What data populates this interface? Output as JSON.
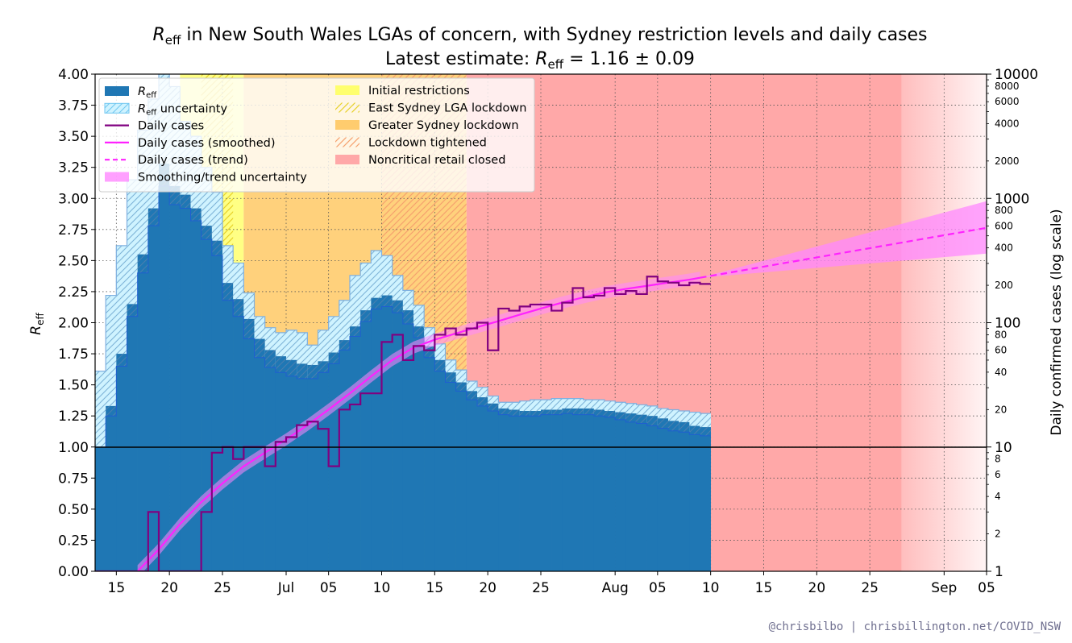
{
  "title": {
    "line1": {
      "r": "R",
      "sub": "eff",
      "rest": " in New South Wales LGAs of concern, with Sydney restriction levels and daily cases"
    },
    "line2": {
      "prefix": "Latest estimate: ",
      "r": "R",
      "sub": "eff",
      "rest": " = 1.16 ± 0.09"
    }
  },
  "credit": "@chrisbilbo | chrisbillington.net/COVID_NSW",
  "axes": {
    "left_label": {
      "r": "R",
      "sub": "eff"
    },
    "right_label": "Daily confirmed cases (log scale)",
    "x_range": [
      "2021-06-13",
      "2021-09-05"
    ],
    "x_ticks": [
      {
        "date": "2021-06-15",
        "label": "15"
      },
      {
        "date": "2021-06-20",
        "label": "20"
      },
      {
        "date": "2021-06-25",
        "label": "25"
      },
      {
        "date": "2021-07-01",
        "label": "Jul"
      },
      {
        "date": "2021-07-05",
        "label": "05"
      },
      {
        "date": "2021-07-10",
        "label": "10"
      },
      {
        "date": "2021-07-15",
        "label": "15"
      },
      {
        "date": "2021-07-20",
        "label": "20"
      },
      {
        "date": "2021-07-25",
        "label": "25"
      },
      {
        "date": "2021-08-01",
        "label": "Aug"
      },
      {
        "date": "2021-08-05",
        "label": "05"
      },
      {
        "date": "2021-08-10",
        "label": "10"
      },
      {
        "date": "2021-08-15",
        "label": "15"
      },
      {
        "date": "2021-08-20",
        "label": "20"
      },
      {
        "date": "2021-08-25",
        "label": "25"
      },
      {
        "date": "2021-09-01",
        "label": "Sep"
      },
      {
        "date": "2021-09-05",
        "label": "05"
      }
    ],
    "y_left_range": [
      0,
      4
    ],
    "y_left_ticks": [
      "0.00",
      "0.25",
      "0.50",
      "0.75",
      "1.00",
      "1.25",
      "1.50",
      "1.75",
      "2.00",
      "2.25",
      "2.50",
      "2.75",
      "3.00",
      "3.25",
      "3.50",
      "3.75",
      "4.00"
    ],
    "y_right_range": [
      1,
      10000
    ],
    "y_right_scale": "log",
    "y_right_major": [
      {
        "value": 1,
        "label": "1"
      },
      {
        "value": 10,
        "label": "10"
      },
      {
        "value": 100,
        "label": "100"
      },
      {
        "value": 1000,
        "label": "1000"
      },
      {
        "value": 10000,
        "label": "10000"
      }
    ],
    "y_right_minor": [
      {
        "value": 2,
        "label": "2"
      },
      {
        "value": 4,
        "label": "4"
      },
      {
        "value": 6,
        "label": "6"
      },
      {
        "value": 8,
        "label": "8"
      },
      {
        "value": 20,
        "label": "20"
      },
      {
        "value": 40,
        "label": "40"
      },
      {
        "value": 60,
        "label": "60"
      },
      {
        "value": 80,
        "label": "80"
      },
      {
        "value": 200,
        "label": "200"
      },
      {
        "value": 400,
        "label": "400"
      },
      {
        "value": 600,
        "label": "600"
      },
      {
        "value": 800,
        "label": "800"
      },
      {
        "value": 2000,
        "label": "2000"
      },
      {
        "value": 4000,
        "label": "4000"
      },
      {
        "value": 6000,
        "label": "6000"
      },
      {
        "value": 8000,
        "label": "8000"
      }
    ],
    "grid": true
  },
  "legend": {
    "placement": "top-left",
    "col1": [
      {
        "key": "reff",
        "r": true,
        "text": "R",
        "sub": "eff",
        "rest": ""
      },
      {
        "key": "unc",
        "r": true,
        "text": "R",
        "sub": "eff",
        "rest": " uncertainty"
      },
      {
        "key": "cases",
        "r": false,
        "text": "Daily cases"
      },
      {
        "key": "smooth",
        "r": false,
        "text": "Daily cases (smoothed)"
      },
      {
        "key": "trend",
        "r": false,
        "text": "Daily cases (trend)"
      },
      {
        "key": "band",
        "r": false,
        "text": "Smoothing/trend uncertainty"
      }
    ],
    "col2": [
      {
        "key": "r1",
        "text": "Initial restrictions"
      },
      {
        "key": "r2",
        "text": "East Sydney LGA lockdown"
      },
      {
        "key": "r3",
        "text": "Greater Sydney lockdown"
      },
      {
        "key": "r4",
        "text": "Lockdown tightened"
      },
      {
        "key": "r5",
        "text": "Noncritical retail closed"
      }
    ]
  },
  "colors": {
    "reff": "#1f77b4",
    "reff_edge": "#1f5fd0",
    "uncertainty_fill": "#cff3ff",
    "uncertainty_hatch": "#6fc6f0",
    "cases": "#800080",
    "smoothed": "#ff22ff",
    "band": "#ff88ff",
    "initial_restrictions": "#ffff6e",
    "east_sydney_hatch": "#e8d12a",
    "greater_sydney": "#ffcc6e",
    "tightened_hatch": "#f5a16e",
    "noncritical_retail": "#ffa8a8"
  },
  "chart_data": {
    "type": "step",
    "restriction_periods": [
      {
        "name": "Initial restrictions",
        "start": "2021-06-21",
        "end": "2021-06-27"
      },
      {
        "name": "East Sydney LGA lockdown",
        "start": "2021-06-23",
        "end": "2021-06-26",
        "hatched": true
      },
      {
        "name": "Greater Sydney lockdown",
        "start": "2021-06-27",
        "end": "2021-09-05"
      },
      {
        "name": "Lockdown tightened",
        "start": "2021-07-10",
        "end": "2021-09-05",
        "hatched": true
      },
      {
        "name": "Noncritical retail closed",
        "start": "2021-07-18",
        "end": "2021-09-05"
      }
    ],
    "reff": {
      "start": "2021-06-13",
      "values": [
        1.0,
        1.33,
        1.75,
        2.15,
        2.55,
        2.92,
        3.28,
        3.1,
        3.03,
        2.92,
        2.78,
        2.66,
        2.32,
        2.19,
        2.03,
        1.87,
        1.78,
        1.73,
        1.7,
        1.67,
        1.66,
        1.69,
        1.76,
        1.86,
        1.97,
        2.1,
        2.2,
        2.22,
        2.18,
        2.1,
        1.97,
        1.81,
        1.7,
        1.6,
        1.52,
        1.45,
        1.4,
        1.35,
        1.31,
        1.3,
        1.29,
        1.29,
        1.3,
        1.3,
        1.31,
        1.31,
        1.31,
        1.3,
        1.29,
        1.28,
        1.27,
        1.26,
        1.25,
        1.23,
        1.21,
        1.2,
        1.17,
        1.16
      ],
      "lower": [
        1.0,
        1.25,
        1.65,
        2.05,
        2.4,
        2.78,
        3.1,
        2.95,
        2.92,
        2.82,
        2.67,
        2.54,
        2.18,
        2.05,
        1.87,
        1.72,
        1.64,
        1.6,
        1.57,
        1.55,
        1.55,
        1.6,
        1.67,
        1.78,
        1.89,
        2.01,
        2.11,
        2.13,
        2.08,
        1.99,
        1.88,
        1.72,
        1.61,
        1.52,
        1.45,
        1.38,
        1.33,
        1.29,
        1.26,
        1.25,
        1.25,
        1.25,
        1.26,
        1.26,
        1.27,
        1.26,
        1.26,
        1.25,
        1.24,
        1.22,
        1.2,
        1.19,
        1.17,
        1.15,
        1.13,
        1.12,
        1.1,
        1.09
      ],
      "upper": [
        1.61,
        2.22,
        2.62,
        3.15,
        3.55,
        3.8,
        4.0,
        3.9,
        3.62,
        3.5,
        3.25,
        3.05,
        2.62,
        2.48,
        2.24,
        2.05,
        1.96,
        1.92,
        1.94,
        1.92,
        1.82,
        1.94,
        2.05,
        2.18,
        2.38,
        2.48,
        2.58,
        2.54,
        2.38,
        2.26,
        2.14,
        1.96,
        1.83,
        1.7,
        1.62,
        1.53,
        1.48,
        1.41,
        1.36,
        1.36,
        1.37,
        1.38,
        1.38,
        1.39,
        1.39,
        1.39,
        1.38,
        1.38,
        1.37,
        1.36,
        1.35,
        1.34,
        1.33,
        1.31,
        1.3,
        1.29,
        1.28,
        1.27
      ]
    },
    "daily_cases": {
      "start": "2021-06-13",
      "values": [
        1,
        1,
        1,
        1,
        1,
        3,
        1,
        1,
        1,
        1,
        3,
        9,
        10,
        8,
        10,
        10,
        7,
        11,
        12,
        15,
        16,
        14,
        7,
        20,
        22,
        27,
        27,
        70,
        80,
        50,
        65,
        60,
        80,
        90,
        80,
        90,
        100,
        60,
        130,
        125,
        135,
        140,
        140,
        125,
        145,
        190,
        160,
        165,
        190,
        170,
        180,
        170,
        235,
        215,
        210,
        200,
        210,
        205
      ],
      "last": "2021-08-09"
    },
    "smoothed": {
      "points": [
        {
          "date": "2021-06-17",
          "value": 1.0
        },
        {
          "date": "2021-06-19",
          "value": 1.5
        },
        {
          "date": "2021-06-21",
          "value": 2.4
        },
        {
          "date": "2021-06-23",
          "value": 3.6
        },
        {
          "date": "2021-06-25",
          "value": 5.1
        },
        {
          "date": "2021-06-27",
          "value": 7.0
        },
        {
          "date": "2021-06-29",
          "value": 9.0
        },
        {
          "date": "2021-07-01",
          "value": 11.5
        },
        {
          "date": "2021-07-03",
          "value": 15.0
        },
        {
          "date": "2021-07-05",
          "value": 20.0
        },
        {
          "date": "2021-07-07",
          "value": 27.0
        },
        {
          "date": "2021-07-09",
          "value": 37.0
        },
        {
          "date": "2021-07-11",
          "value": 50.0
        },
        {
          "date": "2021-07-13",
          "value": 63.0
        },
        {
          "date": "2021-07-15",
          "value": 73.0
        },
        {
          "date": "2021-07-17",
          "value": 82.0
        },
        {
          "date": "2021-07-19",
          "value": 92.0
        },
        {
          "date": "2021-07-21",
          "value": 103.0
        },
        {
          "date": "2021-07-23",
          "value": 116.0
        },
        {
          "date": "2021-07-25",
          "value": 130.0
        },
        {
          "date": "2021-07-27",
          "value": 145.0
        },
        {
          "date": "2021-07-29",
          "value": 160.0
        },
        {
          "date": "2021-07-31",
          "value": 175.0
        },
        {
          "date": "2021-08-02",
          "value": 187.0
        },
        {
          "date": "2021-08-04",
          "value": 198.0
        },
        {
          "date": "2021-08-06",
          "value": 210.0
        },
        {
          "date": "2021-08-08",
          "value": 222.0
        },
        {
          "date": "2021-08-09",
          "value": 230.0
        }
      ]
    },
    "trend": {
      "start": {
        "date": "2021-08-09",
        "value": 230
      },
      "end": {
        "date": "2021-09-05",
        "value": 580
      },
      "band_end_low": 360,
      "band_end_high": 950
    }
  }
}
